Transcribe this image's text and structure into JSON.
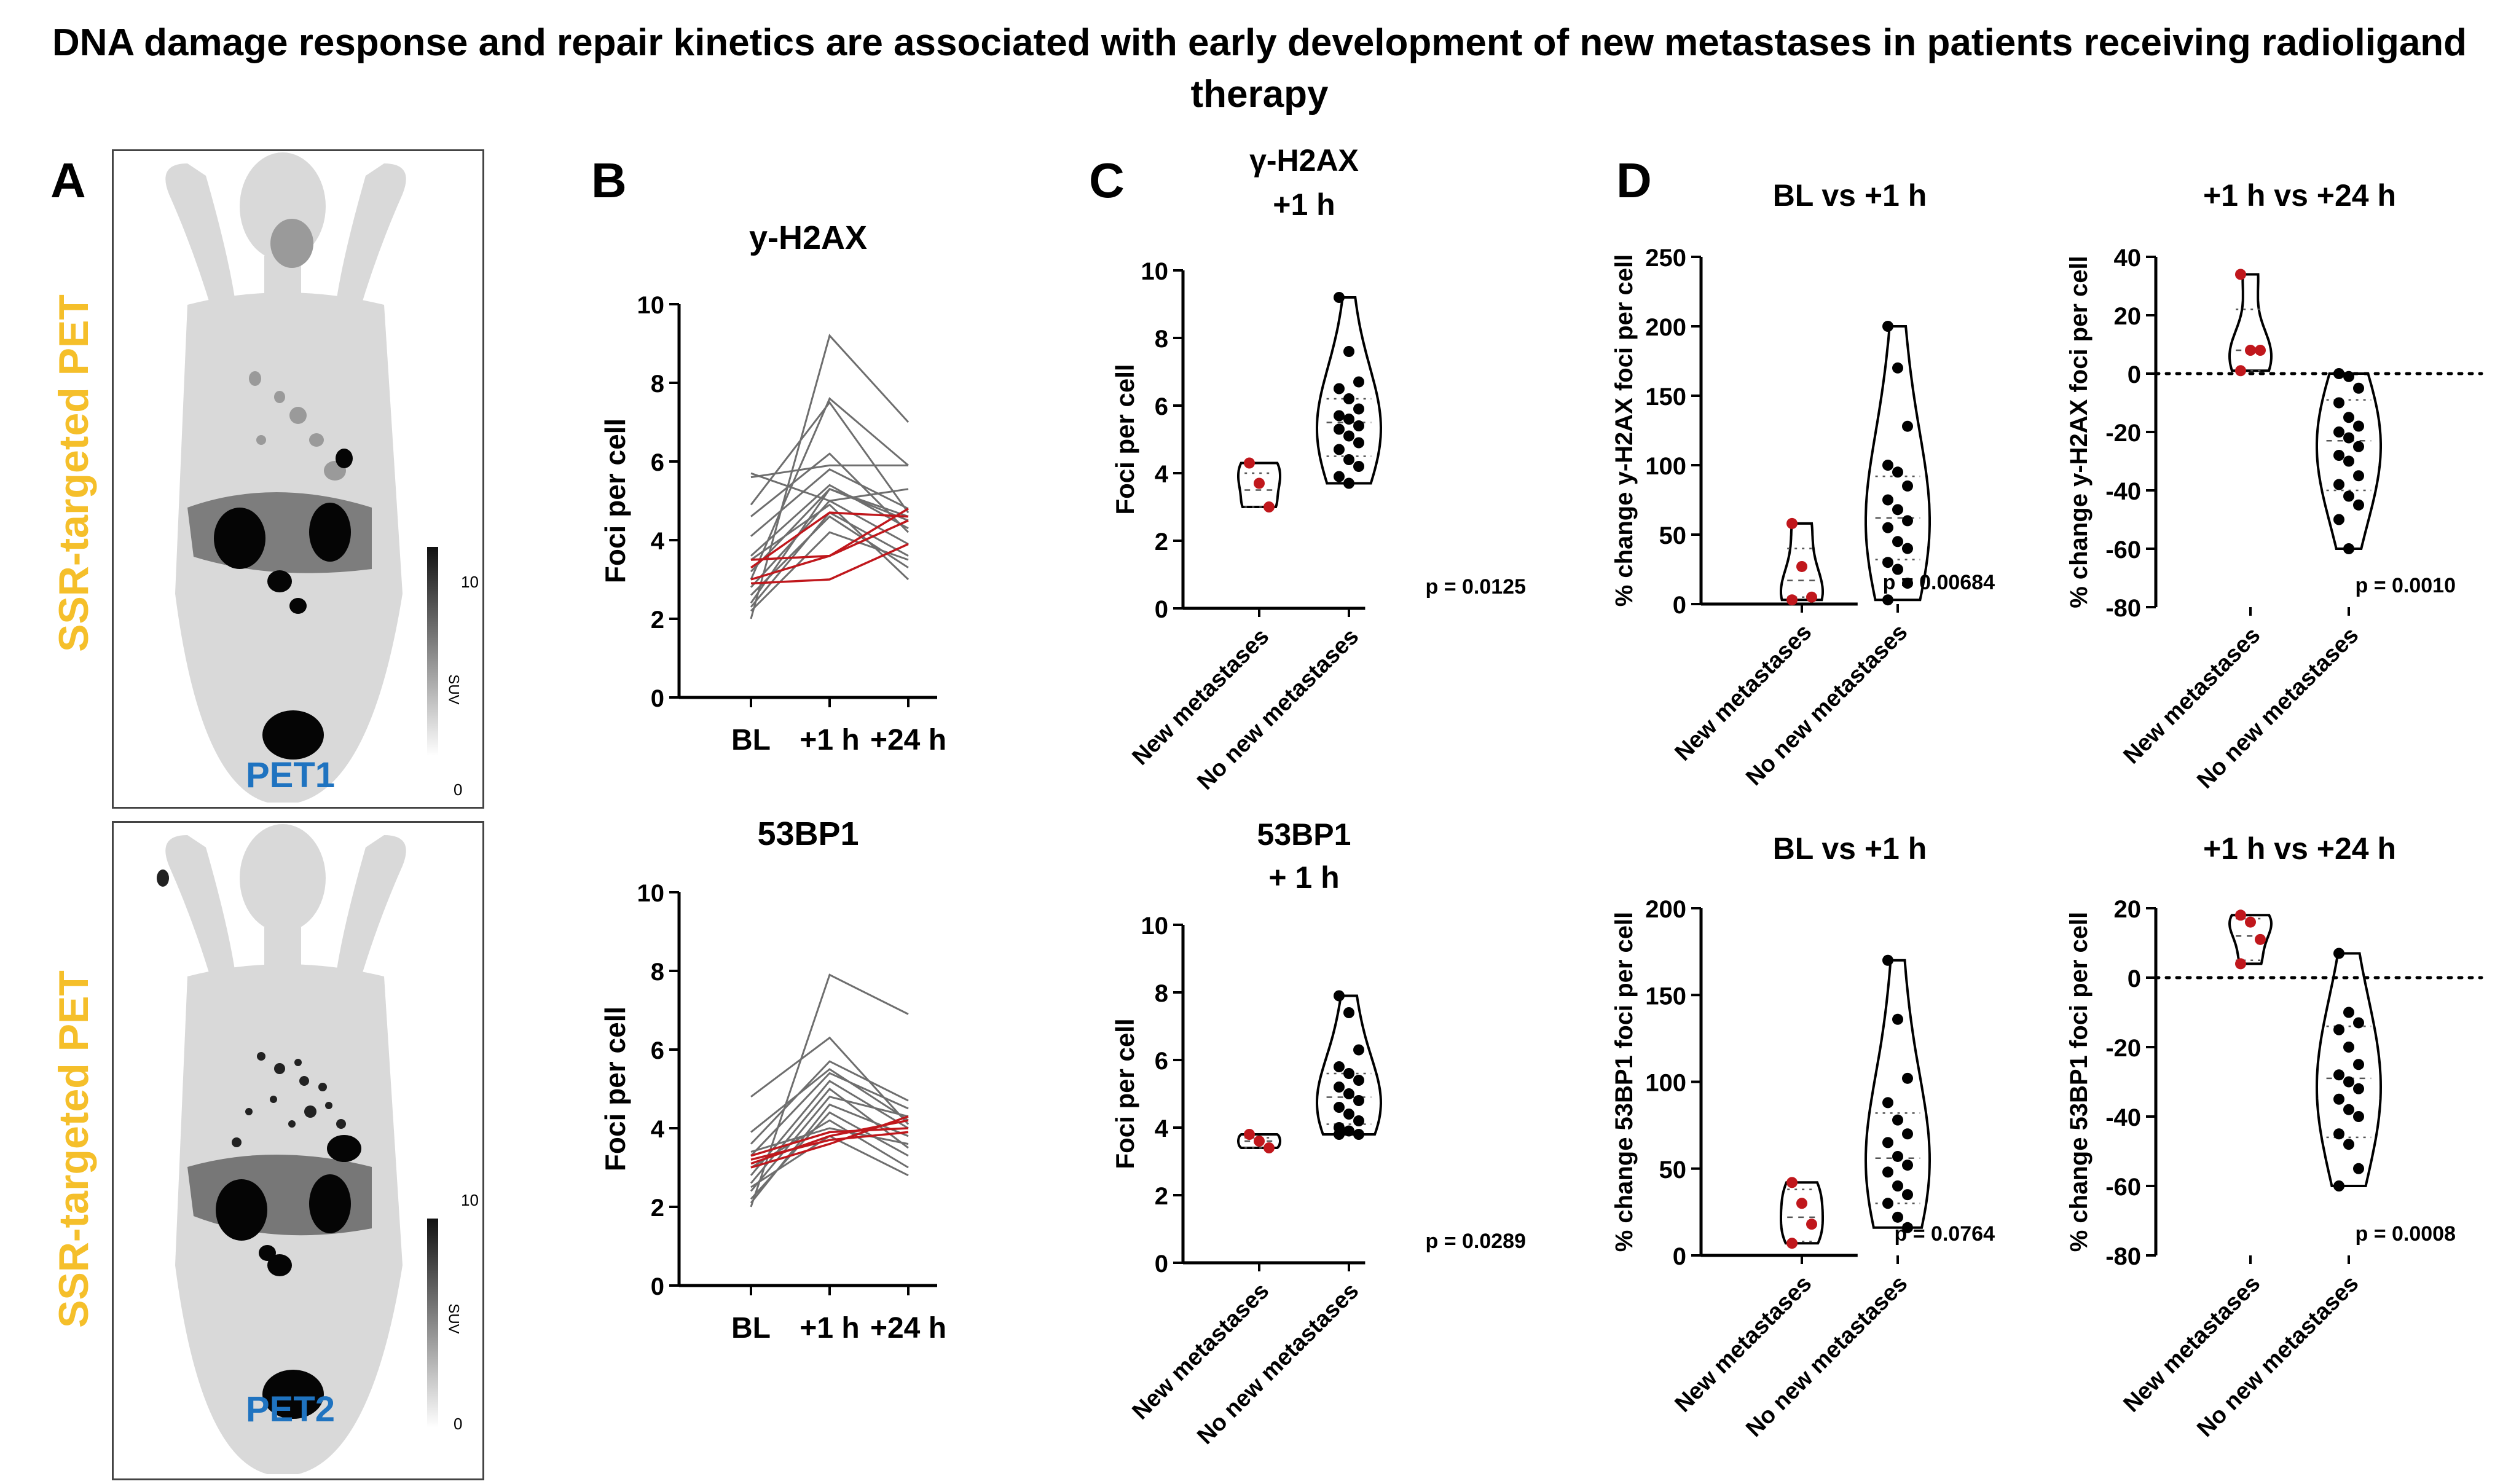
{
  "title": "DNA damage response and repair kinetics are associated with early development of new metastases in patients receiving radioligand therapy",
  "colors": {
    "red": "#c0171c",
    "grey": "#6e6e6e",
    "pet_yellow": "#f5bf2a",
    "pet_blue": "#1f73c0"
  },
  "panels": {
    "a": "A",
    "b": "B",
    "c": "C",
    "d": "D"
  },
  "pet": [
    {
      "side_label": "SSR-targeted PET",
      "tag": "PET1",
      "scale_label": "SUV",
      "scale_max": "10",
      "scale_min": "0"
    },
    {
      "side_label": "SSR-targeted PET",
      "tag": "PET2",
      "scale_label": "SUV",
      "scale_max": "10",
      "scale_min": "0"
    }
  ],
  "chart_data": [
    {
      "id": "b1",
      "type": "line",
      "title": "y-H2AX",
      "xlabel": "",
      "ylabel": "Foci per cell",
      "categories": [
        "BL",
        "+1 h",
        "+24 h"
      ],
      "ylim": [
        0,
        10
      ],
      "yticks": [
        0,
        2,
        4,
        6,
        8,
        10
      ],
      "series_grey": [
        [
          2.0,
          9.2,
          7.0
        ],
        [
          3.0,
          7.6,
          5.9
        ],
        [
          4.9,
          7.5,
          4.7
        ],
        [
          5.6,
          5.9,
          5.9
        ],
        [
          4.6,
          6.2,
          4.2
        ],
        [
          5.7,
          5.0,
          5.3
        ],
        [
          4.1,
          5.8,
          4.8
        ],
        [
          3.6,
          5.4,
          4.3
        ],
        [
          3.2,
          5.3,
          4.6
        ],
        [
          2.8,
          5.0,
          3.9
        ],
        [
          2.6,
          4.6,
          3.3
        ],
        [
          2.4,
          5.3,
          4.5
        ],
        [
          2.2,
          4.2,
          3.5
        ],
        [
          3.5,
          4.9,
          3.0
        ],
        [
          2.3,
          4.7,
          3.6
        ]
      ],
      "series_red": [
        [
          3.5,
          3.6,
          4.8
        ],
        [
          3.3,
          4.7,
          4.6
        ],
        [
          2.9,
          3.0,
          3.9
        ],
        [
          3.0,
          3.6,
          4.5
        ]
      ]
    },
    {
      "id": "b2",
      "type": "line",
      "title": "53BP1",
      "xlabel": "",
      "ylabel": "Foci per cell",
      "categories": [
        "BL",
        "+1 h",
        "+24 h"
      ],
      "ylim": [
        0,
        10
      ],
      "yticks": [
        0,
        2,
        4,
        6,
        8,
        10
      ],
      "series_grey": [
        [
          2.0,
          7.9,
          6.9
        ],
        [
          4.8,
          6.3,
          4.1
        ],
        [
          3.6,
          5.7,
          4.7
        ],
        [
          3.9,
          5.5,
          4.2
        ],
        [
          3.3,
          5.4,
          4.5
        ],
        [
          2.8,
          5.2,
          4.0
        ],
        [
          2.6,
          5.0,
          3.5
        ],
        [
          2.4,
          4.8,
          4.3
        ],
        [
          2.2,
          4.4,
          3.3
        ],
        [
          3.0,
          4.2,
          3.0
        ],
        [
          2.1,
          4.6,
          3.8
        ],
        [
          2.5,
          3.8,
          2.8
        ],
        [
          3.4,
          4.0,
          3.6
        ]
      ],
      "series_red": [
        [
          3.1,
          3.8,
          4.2
        ],
        [
          3.3,
          3.9,
          4.0
        ],
        [
          3.0,
          3.6,
          4.3
        ],
        [
          3.2,
          3.7,
          3.9
        ]
      ]
    },
    {
      "id": "c1",
      "type": "violin",
      "title": "γ-H2AX",
      "subtitle": "+1 h",
      "ylabel": "Foci per cell",
      "categories": [
        "New metastases",
        "No new metastases"
      ],
      "ylim": [
        0,
        10
      ],
      "yticks": [
        0,
        2,
        4,
        6,
        8,
        10
      ],
      "pvalue": "p = 0.0125",
      "groups": [
        {
          "points": [
            4.3,
            3.7,
            3.0
          ],
          "median": 3.5,
          "q1": 3.0,
          "q3": 4.0,
          "color": "#c0171c"
        },
        {
          "points": [
            9.2,
            7.6,
            6.7,
            6.5,
            6.2,
            5.9,
            5.7,
            5.6,
            5.4,
            5.3,
            5.1,
            4.9,
            4.7,
            4.4,
            4.2,
            3.9,
            3.7
          ],
          "median": 5.5,
          "q1": 4.5,
          "q3": 6.2,
          "color": "#000000"
        }
      ]
    },
    {
      "id": "c2",
      "type": "violin",
      "title": "53BP1",
      "subtitle": "+ 1 h",
      "ylabel": "Foci per cell",
      "categories": [
        "New metastases",
        "No new metastases"
      ],
      "ylim": [
        0,
        10
      ],
      "yticks": [
        0,
        2,
        4,
        6,
        8,
        10
      ],
      "pvalue": "p = 0.0289",
      "groups": [
        {
          "points": [
            3.8,
            3.6,
            3.4
          ],
          "median": 3.6,
          "q1": 3.4,
          "q3": 3.7,
          "color": "#c0171c"
        },
        {
          "points": [
            7.9,
            7.4,
            6.3,
            5.8,
            5.6,
            5.4,
            5.2,
            5.0,
            4.8,
            4.6,
            4.4,
            4.2,
            4.0,
            3.9,
            3.8,
            3.8
          ],
          "median": 4.9,
          "q1": 4.1,
          "q3": 5.6,
          "color": "#000000"
        }
      ]
    },
    {
      "id": "d1",
      "type": "violin",
      "title": "BL vs +1 h",
      "ylabel": "% change y-H2AX foci per cell",
      "categories": [
        "New metastases",
        "No new metastases"
      ],
      "ylim": [
        0,
        250
      ],
      "yticks": [
        0,
        50,
        100,
        150,
        200,
        250
      ],
      "pvalue": "p = 0.00684",
      "zero_line": false,
      "groups": [
        {
          "points": [
            58,
            27,
            5,
            3
          ],
          "median": 17,
          "q1": 5,
          "q3": 40,
          "color": "#c0171c"
        },
        {
          "points": [
            200,
            170,
            128,
            100,
            95,
            85,
            75,
            68,
            60,
            55,
            45,
            40,
            30,
            25,
            15,
            3
          ],
          "median": 62,
          "q1": 32,
          "q3": 92,
          "color": "#000000"
        }
      ]
    },
    {
      "id": "d2",
      "type": "violin",
      "title": "+1 h vs +24 h",
      "ylabel": "% change y-H2AX foci per cell",
      "categories": [
        "New metastases",
        "No new metastases"
      ],
      "ylim": [
        -80,
        40
      ],
      "yticks": [
        -80,
        -60,
        -40,
        -20,
        0,
        20,
        40
      ],
      "pvalue": "p = 0.0010",
      "zero_line": true,
      "groups": [
        {
          "points": [
            34,
            8,
            8,
            1
          ],
          "median": 8,
          "q1": 1,
          "q3": 22,
          "color": "#c0171c"
        },
        {
          "points": [
            0,
            -1,
            -5,
            -10,
            -15,
            -18,
            -20,
            -22,
            -25,
            -28,
            -30,
            -35,
            -38,
            -42,
            -45,
            -50,
            -60
          ],
          "median": -23,
          "q1": -40,
          "q3": -9,
          "color": "#000000"
        }
      ]
    },
    {
      "id": "d3",
      "type": "violin",
      "title": "BL vs +1 h",
      "ylabel": "% change 53BP1 foci per cell",
      "categories": [
        "New metastases",
        "No new metastases"
      ],
      "ylim": [
        0,
        200
      ],
      "yticks": [
        0,
        50,
        100,
        150,
        200
      ],
      "pvalue": "p = 0.0764",
      "zero_line": false,
      "groups": [
        {
          "points": [
            42,
            30,
            18,
            7
          ],
          "median": 22,
          "q1": 8,
          "q3": 38,
          "color": "#c0171c"
        },
        {
          "points": [
            170,
            136,
            102,
            88,
            78,
            70,
            65,
            57,
            52,
            48,
            40,
            35,
            30,
            22,
            16
          ],
          "median": 56,
          "q1": 30,
          "q3": 82,
          "color": "#000000"
        }
      ]
    },
    {
      "id": "d4",
      "type": "violin",
      "title": "+1 h vs +24 h",
      "ylabel": "% change 53BP1 foci per cell",
      "categories": [
        "New metastases",
        "No new metastases"
      ],
      "ylim": [
        -80,
        20
      ],
      "yticks": [
        -80,
        -60,
        -40,
        -20,
        0,
        20
      ],
      "pvalue": "p = 0.0008",
      "zero_line": true,
      "groups": [
        {
          "points": [
            18,
            16,
            11,
            4
          ],
          "median": 12,
          "q1": 5,
          "q3": 17,
          "color": "#c0171c"
        },
        {
          "points": [
            7,
            -10,
            -13,
            -15,
            -20,
            -25,
            -28,
            -30,
            -32,
            -35,
            -38,
            -40,
            -45,
            -48,
            -55,
            -60
          ],
          "median": -29,
          "q1": -46,
          "q3": -14,
          "color": "#000000"
        }
      ]
    }
  ]
}
